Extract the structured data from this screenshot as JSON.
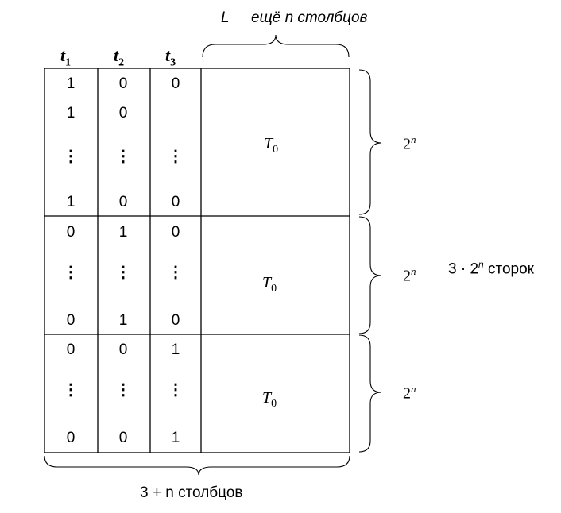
{
  "top": {
    "l_label": "L",
    "more_cols_label": "ещё n столбцов"
  },
  "headers": [
    {
      "base": "t",
      "sub": "1"
    },
    {
      "base": "t",
      "sub": "2"
    },
    {
      "base": "t",
      "sub": "3"
    }
  ],
  "blocks": [
    {
      "rows": [
        [
          "1",
          "0",
          "0"
        ],
        [
          "1",
          "0",
          ""
        ],
        [
          "⋮",
          "⋮",
          "⋮"
        ],
        [
          "1",
          "0",
          "0"
        ]
      ],
      "t0": {
        "base": "T",
        "sub": "0"
      },
      "brace": {
        "base": "2",
        "exp": "n"
      }
    },
    {
      "rows": [
        [
          "0",
          "1",
          "0"
        ],
        [
          "⋮",
          "⋮",
          "⋮"
        ],
        [
          "0",
          "1",
          "0"
        ]
      ],
      "t0": {
        "base": "T",
        "sub": "0"
      },
      "brace": {
        "base": "2",
        "exp": "n"
      }
    },
    {
      "rows": [
        [
          "0",
          "0",
          "1"
        ],
        [
          "⋮",
          "⋮",
          "⋮"
        ],
        [
          "0",
          "0",
          "1"
        ]
      ],
      "t0": {
        "base": "T",
        "sub": "0"
      },
      "brace": {
        "base": "2",
        "exp": "n"
      }
    }
  ],
  "total_rows": {
    "pre": "3 · 2",
    "exp": "n",
    "post": " сторок"
  },
  "bottom_label": "3 + n столбцов"
}
